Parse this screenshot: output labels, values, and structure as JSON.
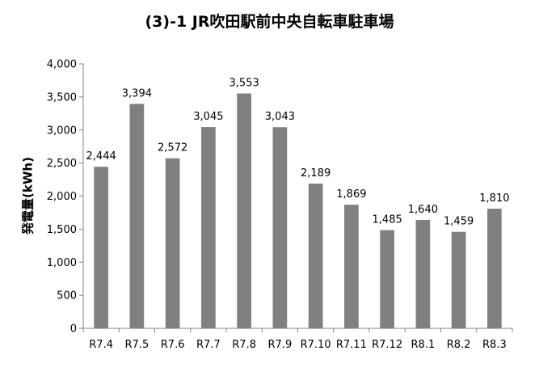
{
  "chart_data": {
    "type": "bar",
    "title": "(3)-1 JR吹田駅前中央自転車駐車場",
    "xlabel": "",
    "ylabel": "発電量(kWh)",
    "categories": [
      "R7.4",
      "R7.5",
      "R7.6",
      "R7.7",
      "R7.8",
      "R7.9",
      "R7.10",
      "R7.11",
      "R7.12",
      "R8.1",
      "R8.2",
      "R8.3"
    ],
    "values": [
      2444,
      3394,
      2572,
      3045,
      3553,
      3043,
      2189,
      1869,
      1485,
      1640,
      1459,
      1810
    ],
    "data_labels": [
      "2,444",
      "3,394",
      "2,572",
      "3,045",
      "3,553",
      "3,043",
      "2,189",
      "1,869",
      "1,485",
      "1,640",
      "1,459",
      "1,810"
    ],
    "ylim": [
      0,
      4000
    ],
    "yticks": [
      0,
      500,
      1000,
      1500,
      2000,
      2500,
      3000,
      3500,
      4000
    ],
    "ytick_labels": [
      "0",
      "500",
      "1,000",
      "1,500",
      "2,000",
      "2,500",
      "3,000",
      "3,500",
      "4,000"
    ],
    "grid": false,
    "legend": "none",
    "bar_color": "#808080",
    "axis_color": "#808080"
  }
}
